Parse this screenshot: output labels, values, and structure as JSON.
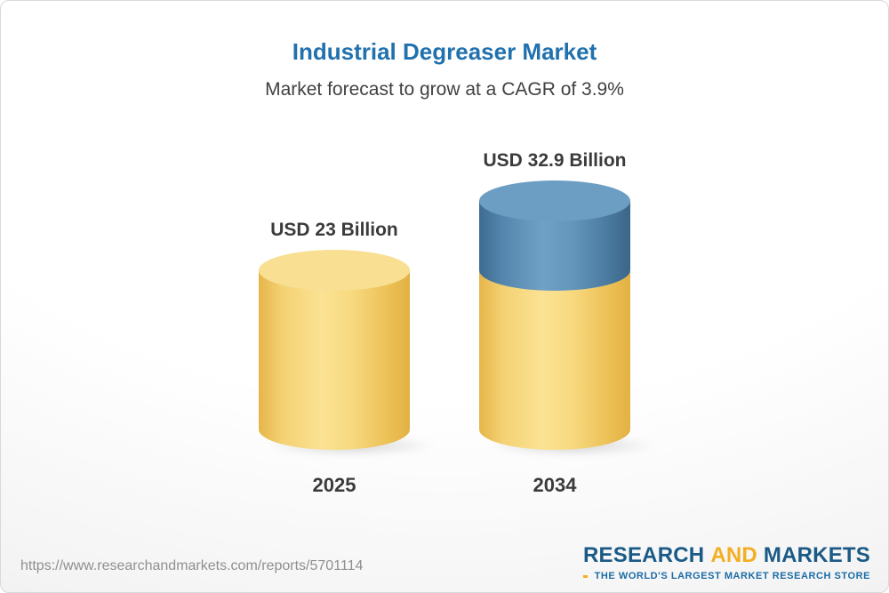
{
  "chart_data": {
    "type": "bar",
    "style": "3d-cylinder",
    "title": "Industrial Degreaser Market",
    "subtitle": "Market forecast to grow at a CAGR of 3.9%",
    "categories": [
      "2025",
      "2034"
    ],
    "values": [
      23,
      32.9
    ],
    "value_labels": [
      "USD 23 Billion",
      "USD 32.9 Billion"
    ],
    "unit": "USD Billion",
    "cagr_percent": 3.9,
    "legend_position": "none",
    "grid": false,
    "colors": {
      "base_segment": "#F6D77E",
      "growth_segment": "#5C8FB6"
    }
  },
  "header": {
    "title": "Industrial Degreaser Market",
    "subtitle": "Market forecast to grow at a CAGR of 3.9%"
  },
  "bars": [
    {
      "year": "2025",
      "label": "USD 23 Billion",
      "value": 23,
      "segments": [
        {
          "value": 23,
          "palette": "yellow"
        }
      ]
    },
    {
      "year": "2034",
      "label": "USD 32.9 Billion",
      "value": 32.9,
      "segments": [
        {
          "value": 23,
          "palette": "yellow"
        },
        {
          "value": 9.9,
          "palette": "blue"
        }
      ]
    }
  ],
  "footer": {
    "url": "https://www.researchandmarkets.com/reports/5701114",
    "logo": {
      "word1": "RESEARCH",
      "word2": "AND",
      "word3": "MARKETS",
      "tagline": "THE WORLD'S LARGEST MARKET RESEARCH STORE"
    }
  },
  "colors": {
    "title_blue": "#2171AE",
    "text_dark": "#3B3B3B",
    "logo_blue": "#1A5A86",
    "logo_yellow": "#F3AF21",
    "url_gray": "#8F8F8F"
  }
}
